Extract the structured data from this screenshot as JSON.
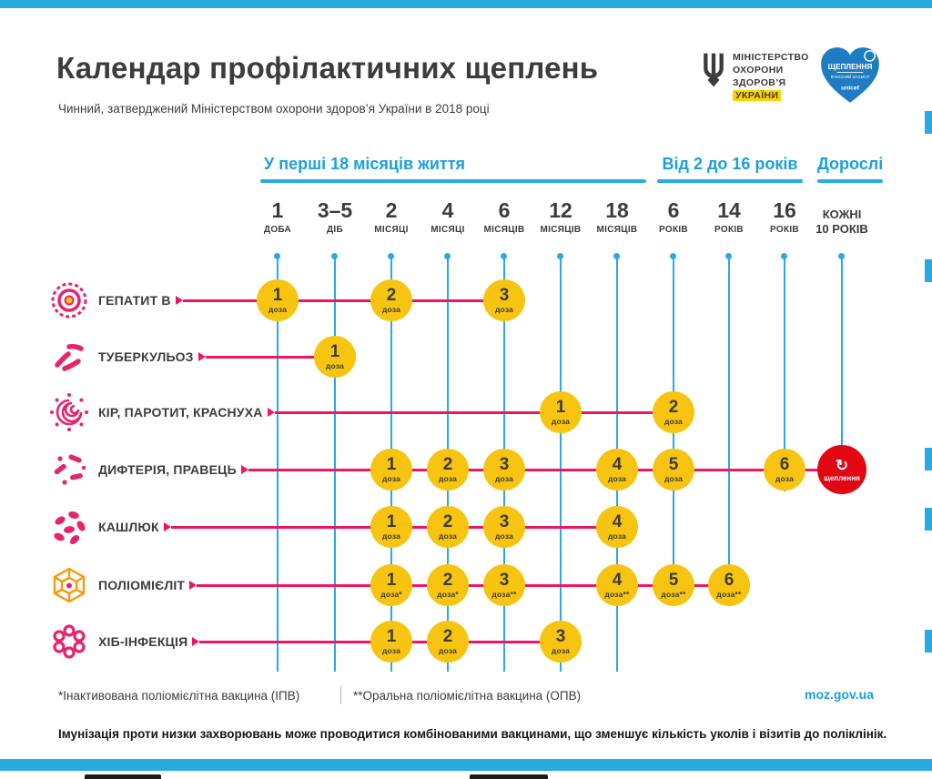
{
  "page": {
    "title": "Календар профілактичних щеплень",
    "subtitle": "Чинний, затверджений Міністерством охорони здоров’я України в 2018 році"
  },
  "logos": {
    "ministry": {
      "line1": "МІНІСТЕРСТВО",
      "line2": "ОХОРОНИ",
      "line3": "ЗДОРОВ’Я",
      "line4": "УКРАЇНИ"
    },
    "heart": {
      "line1": "ЩЕПЛЕННЯ",
      "line2": "ВЧАСНИЙ ЗАХИСТ",
      "line3": "unicef"
    }
  },
  "timeline": {
    "groups": [
      {
        "label": "У перші 18 місяців життя"
      },
      {
        "label": "Від 2 до 16 років"
      },
      {
        "label": "Дорослі"
      }
    ],
    "columns": [
      {
        "num": "1",
        "unit": "ДОБА"
      },
      {
        "num": "3–5",
        "unit": "ДІБ"
      },
      {
        "num": "2",
        "unit": "МІСЯЦІ"
      },
      {
        "num": "4",
        "unit": "МІСЯЦІ"
      },
      {
        "num": "6",
        "unit": "МІСЯЦІВ"
      },
      {
        "num": "12",
        "unit": "МІСЯЦІВ"
      },
      {
        "num": "18",
        "unit": "МІСЯЦІВ"
      },
      {
        "num": "6",
        "unit": "РОКІВ"
      },
      {
        "num": "14",
        "unit": "РОКІВ"
      },
      {
        "num": "16",
        "unit": "РОКІВ"
      },
      {
        "num": "КОЖНІ",
        "unit": "10 РОКІВ",
        "small": true
      }
    ]
  },
  "rows": [
    {
      "label": "ГЕПАТИТ В",
      "icon": "hepatitis-b-virus-icon",
      "doses": [
        {
          "col": 0,
          "num": "1",
          "unit": "доза"
        },
        {
          "col": 2,
          "num": "2",
          "unit": "доза"
        },
        {
          "col": 4,
          "num": "3",
          "unit": "доза"
        }
      ]
    },
    {
      "label": "ТУБЕРКУЛЬОЗ",
      "icon": "tuberculosis-bacteria-icon",
      "doses": [
        {
          "col": 1,
          "num": "1",
          "unit": "доза"
        }
      ]
    },
    {
      "label": "КІР, ПАРОТИТ, КРАСНУХА",
      "icon": "measles-virus-icon",
      "doses": [
        {
          "col": 5,
          "num": "1",
          "unit": "доза"
        },
        {
          "col": 7,
          "num": "2",
          "unit": "доза"
        }
      ]
    },
    {
      "label": "ДИФТЕРІЯ, ПРАВЕЦЬ",
      "icon": "diphtheria-bacteria-icon",
      "doses": [
        {
          "col": 2,
          "num": "1",
          "unit": "доза"
        },
        {
          "col": 3,
          "num": "2",
          "unit": "доза"
        },
        {
          "col": 4,
          "num": "3",
          "unit": "доза"
        },
        {
          "col": 6,
          "num": "4",
          "unit": "доза"
        },
        {
          "col": 7,
          "num": "5",
          "unit": "доза"
        },
        {
          "col": 9,
          "num": "6",
          "unit": "доза"
        }
      ],
      "booster": {
        "col": 10,
        "label": "щеплення"
      }
    },
    {
      "label": "КАШЛЮК",
      "icon": "pertussis-bacteria-icon",
      "doses": [
        {
          "col": 2,
          "num": "1",
          "unit": "доза"
        },
        {
          "col": 3,
          "num": "2",
          "unit": "доза"
        },
        {
          "col": 4,
          "num": "3",
          "unit": "доза"
        },
        {
          "col": 6,
          "num": "4",
          "unit": "доза"
        }
      ]
    },
    {
      "label": "ПОЛІОМІЄЛІТ",
      "icon": "polio-virus-icon",
      "doses": [
        {
          "col": 2,
          "num": "1",
          "unit": "доза*"
        },
        {
          "col": 3,
          "num": "2",
          "unit": "доза*"
        },
        {
          "col": 4,
          "num": "3",
          "unit": "доза**"
        },
        {
          "col": 6,
          "num": "4",
          "unit": "доза**"
        },
        {
          "col": 7,
          "num": "5",
          "unit": "доза**"
        },
        {
          "col": 8,
          "num": "6",
          "unit": "доза**"
        }
      ]
    },
    {
      "label": "ХІБ-ІНФЕКЦІЯ",
      "icon": "hib-bacteria-icon",
      "doses": [
        {
          "col": 2,
          "num": "1",
          "unit": "доза"
        },
        {
          "col": 3,
          "num": "2",
          "unit": "доза"
        },
        {
          "col": 5,
          "num": "3",
          "unit": "доза"
        }
      ]
    }
  ],
  "footnotes": {
    "ipv": "*Інактивована поліомієлітна вакцина (ІПВ)",
    "opv": "**Оральна поліомієлітна вакцина (ОПВ)",
    "site": "moz.gov.ua"
  },
  "bottom_note": "Імунізація проти низки захворювань може проводитися комбінованими вакцинами, що зменшує кількість уколів і візитів до поліклінік.",
  "colors": {
    "accent_blue": "#29abe2",
    "blue_text": "#1b9fdd",
    "pink": "#ee1566",
    "icon_pink": "#e6246e",
    "yellow": "#f7c411",
    "red": "#e30613",
    "dark": "#3c3c3b",
    "logo_yellow": "#ffd500",
    "heart_blue": "#1e7dc2",
    "orange": "#f59a0c"
  }
}
